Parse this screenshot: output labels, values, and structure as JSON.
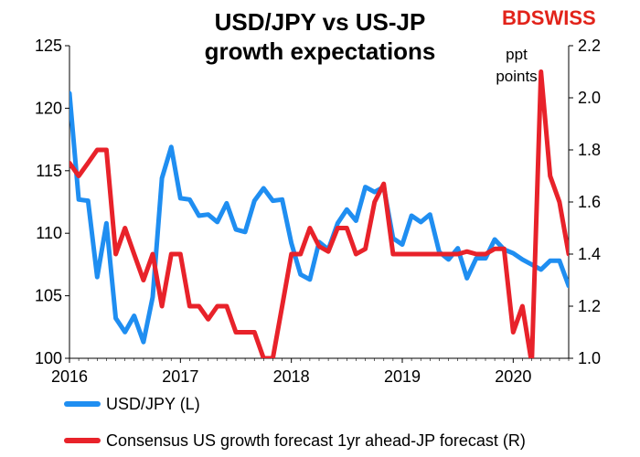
{
  "title_line1": "USD/JPY vs US-JP",
  "title_line2": "growth expectations",
  "logo_text": "BDSWISS",
  "colors": {
    "blue": "#1f8ef1",
    "red": "#e8222a",
    "logo_red": "#e2231a"
  },
  "chart_data": {
    "type": "line",
    "title": "USD/JPY vs US-JP growth expectations",
    "x_ticks": [
      "2016",
      "2017",
      "2018",
      "2019",
      "2020"
    ],
    "left_axis": {
      "range": [
        100,
        125
      ],
      "ticks": [
        "100",
        "105",
        "110",
        "115",
        "120",
        "125"
      ]
    },
    "right_axis": {
      "range": [
        1.0,
        2.2
      ],
      "ticks": [
        "1.0",
        "1.2",
        "1.4",
        "1.6",
        "1.8",
        "2.0",
        "2.2"
      ],
      "unit_note_line1": "ppt",
      "unit_note_line2": "points"
    },
    "legend_placement": "bottom",
    "series": [
      {
        "name": "USD/JPY (L)",
        "axis": "left",
        "color": "#1f8ef1",
        "x": [
          2016.0,
          2016.083,
          2016.167,
          2016.25,
          2016.333,
          2016.417,
          2016.5,
          2016.583,
          2016.667,
          2016.75,
          2016.833,
          2016.917,
          2017.0,
          2017.083,
          2017.167,
          2017.25,
          2017.333,
          2017.417,
          2017.5,
          2017.583,
          2017.667,
          2017.75,
          2017.833,
          2017.917,
          2018.0,
          2018.083,
          2018.167,
          2018.25,
          2018.333,
          2018.417,
          2018.5,
          2018.583,
          2018.667,
          2018.75,
          2018.833,
          2018.917,
          2019.0,
          2019.083,
          2019.167,
          2019.25,
          2019.333,
          2019.417,
          2019.5,
          2019.583,
          2019.667,
          2019.75,
          2019.833,
          2019.917,
          2020.0,
          2020.083,
          2020.167,
          2020.25,
          2020.333,
          2020.417,
          2020.5
        ],
        "y": [
          121.2,
          112.7,
          112.6,
          106.5,
          110.8,
          103.2,
          102.1,
          103.4,
          101.3,
          104.9,
          114.4,
          116.9,
          112.8,
          112.7,
          111.4,
          111.5,
          110.9,
          112.4,
          110.3,
          110.1,
          112.6,
          113.6,
          112.6,
          112.7,
          109.2,
          106.7,
          106.3,
          109.3,
          108.7,
          110.8,
          111.9,
          111.0,
          113.7,
          113.3,
          113.7,
          109.6,
          109.1,
          111.4,
          110.9,
          111.5,
          108.5,
          107.9,
          108.8,
          106.4,
          108.0,
          108.0,
          109.5,
          108.7,
          108.4,
          107.9,
          107.5,
          107.1,
          107.8,
          107.8,
          105.8
        ]
      },
      {
        "name": "Consensus US growth forecast 1yr ahead-JP forecast (R)",
        "axis": "right",
        "color": "#e8222a",
        "x": [
          2016.0,
          2016.083,
          2016.167,
          2016.25,
          2016.333,
          2016.417,
          2016.5,
          2016.583,
          2016.667,
          2016.75,
          2016.833,
          2016.917,
          2017.0,
          2017.083,
          2017.167,
          2017.25,
          2017.333,
          2017.417,
          2017.5,
          2017.583,
          2017.667,
          2017.75,
          2017.833,
          2017.917,
          2018.0,
          2018.083,
          2018.167,
          2018.25,
          2018.333,
          2018.417,
          2018.5,
          2018.583,
          2018.667,
          2018.75,
          2018.833,
          2018.917,
          2019.0,
          2019.083,
          2019.167,
          2019.25,
          2019.333,
          2019.417,
          2019.5,
          2019.583,
          2019.667,
          2019.75,
          2019.833,
          2019.917,
          2020.0,
          2020.083,
          2020.167,
          2020.25,
          2020.333,
          2020.417,
          2020.5
        ],
        "y": [
          1.75,
          1.7,
          1.75,
          1.8,
          1.8,
          1.4,
          1.5,
          1.4,
          1.3,
          1.4,
          1.2,
          1.4,
          1.4,
          1.2,
          1.2,
          1.15,
          1.2,
          1.2,
          1.1,
          1.1,
          1.1,
          1.0,
          1.0,
          1.2,
          1.4,
          1.4,
          1.5,
          1.43,
          1.41,
          1.5,
          1.5,
          1.4,
          1.42,
          1.6,
          1.67,
          1.4,
          1.4,
          1.4,
          1.4,
          1.4,
          1.4,
          1.4,
          1.4,
          1.41,
          1.4,
          1.4,
          1.42,
          1.42,
          1.1,
          1.2,
          0.98,
          2.1,
          1.7,
          1.6,
          1.4
        ]
      }
    ]
  }
}
